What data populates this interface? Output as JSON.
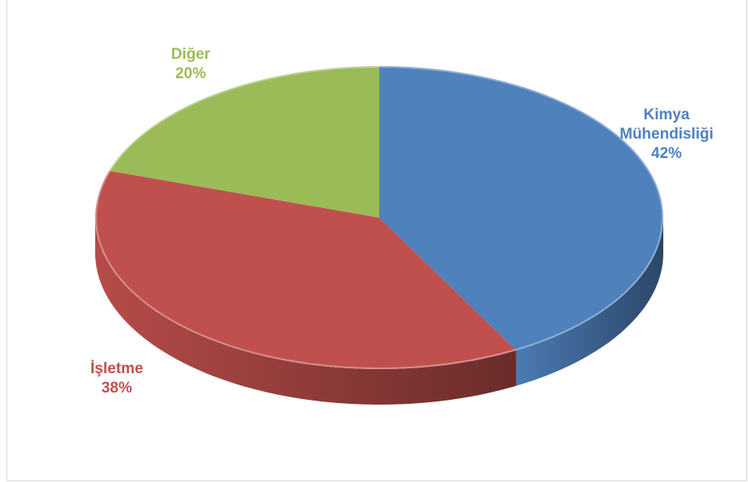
{
  "chart_data": {
    "type": "pie",
    "style": "3d",
    "categories": [
      "Kimya Mühendisliği",
      "İşletme",
      "Diğer"
    ],
    "values": [
      42,
      38,
      20
    ],
    "label_lines": [
      [
        "Kimya",
        "Mühendisliği",
        "42%"
      ],
      [
        "İşletme",
        "38%"
      ],
      [
        "Diğer",
        "20%"
      ]
    ],
    "colors": [
      "#4f81bd",
      "#c0504d",
      "#9bbb59"
    ],
    "side_colors": [
      "#2b4a72",
      "#8a2d2a",
      "#6b8a35"
    ],
    "legend": "none"
  }
}
